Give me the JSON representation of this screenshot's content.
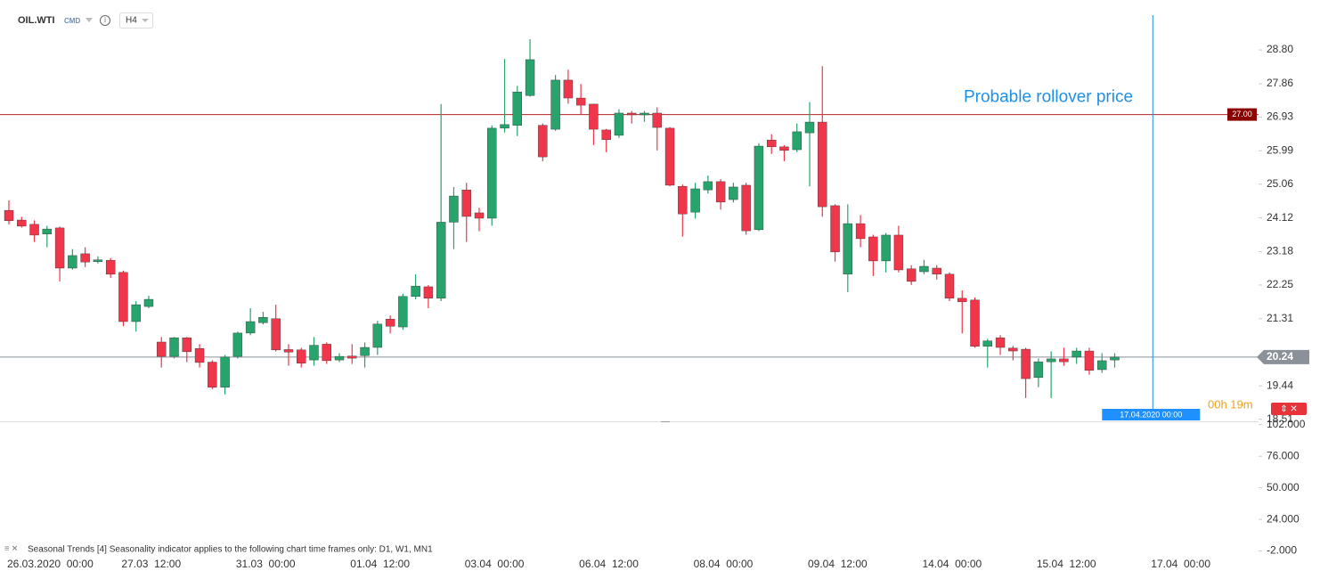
{
  "chart_data": {
    "type": "candlestick",
    "symbol": "OIL.WTI",
    "market": "CMD",
    "timeframe": "H4",
    "annotation": "Probable rollover price",
    "rollover_line": {
      "value": 27,
      "label": "27.00"
    },
    "price_line": 20.24,
    "marker_date": "17.04.2020 00:00",
    "countdown": "00h 19m",
    "indicator_note": "Seasonal  Trends  [4]  Seasonality  indicator  applies  to  the  following  chart  time  frames  only:  D1,  W1,  MN1",
    "x_labels": [
      "26.03.2020  00:00",
      "27.03  12:00",
      "31.03  00:00",
      "01.04  12:00",
      "03.04  00:00",
      "06.04  12:00",
      "08.04  00:00",
      "09.04  12:00",
      "14.04  00:00",
      "15.04  12:00",
      "17.04  00:00"
    ],
    "up_color": "#26a46c",
    "down_color": "#f0364a",
    "open": [
      24.33,
      24.06,
      23.94,
      23.67,
      23.84,
      22.72,
      23.12,
      22.9,
      22.94,
      22.6,
      21.23,
      21.65,
      20.66,
      20.26,
      20.78,
      20.48,
      20.1,
      19.4,
      20.26,
      20.91,
      21.2,
      21.31,
      20.45,
      20.44,
      20.16,
      20.6,
      20.16,
      20.27,
      20.28,
      20.51,
      21.3,
      21.08,
      21.93,
      22.2,
      21.88,
      24.0,
      24.9,
      24.26,
      24.11,
      26.62,
      26.7,
      27.53,
      26.7,
      26.59,
      27.96,
      27.46,
      27.29,
      26.57,
      26.42,
      27.04,
      26.99,
      27.04,
      26.62,
      25.0,
      24.28,
      24.9,
      25.13,
      24.63,
      25.03,
      23.79,
      26.29,
      26.1,
      26.02,
      26.49,
      26.79,
      24.46,
      22.55,
      23.96,
      23.59,
      22.92,
      23.64,
      22.7,
      22.62,
      22.72,
      22.55,
      21.88,
      21.83,
      20.54,
      20.78,
      20.49,
      20.46,
      19.67,
      20.11,
      20.19,
      20.24,
      20.41,
      19.89,
      20.16
    ],
    "high": [
      24.61,
      24.15,
      24.05,
      23.9,
      23.88,
      23.25,
      23.3,
      23.05,
      23.0,
      22.65,
      21.8,
      21.95,
      20.8,
      20.8,
      20.8,
      20.6,
      20.15,
      20.3,
      20.95,
      21.6,
      21.5,
      21.7,
      20.6,
      20.5,
      20.8,
      20.65,
      20.35,
      20.6,
      20.65,
      21.25,
      21.4,
      22.0,
      22.55,
      22.25,
      27.29,
      24.98,
      25.1,
      24.4,
      26.7,
      28.55,
      27.8,
      29.1,
      26.75,
      28.1,
      28.25,
      27.85,
      27.3,
      26.6,
      27.15,
      27.1,
      27.1,
      27.2,
      26.65,
      25.05,
      25.1,
      25.3,
      25.2,
      25.1,
      25.1,
      26.2,
      26.45,
      26.15,
      26.75,
      27.35,
      28.35,
      24.5,
      24.5,
      24.2,
      23.65,
      23.7,
      23.9,
      22.8,
      22.95,
      22.8,
      22.6,
      22.1,
      21.9,
      20.75,
      20.85,
      20.55,
      20.5,
      20.2,
      20.4,
      20.5,
      20.5,
      20.5,
      20.35,
      20.35
    ],
    "low": [
      23.94,
      23.85,
      23.45,
      23.3,
      22.35,
      22.68,
      22.75,
      22.85,
      22.45,
      21.1,
      20.95,
      21.6,
      19.95,
      20.2,
      20.1,
      19.95,
      19.35,
      19.2,
      20.2,
      20.85,
      21.15,
      20.4,
      20.0,
      19.95,
      20.0,
      20.05,
      20.1,
      20.05,
      19.95,
      20.3,
      20.9,
      21.0,
      21.85,
      21.6,
      21.8,
      23.25,
      23.45,
      23.75,
      23.9,
      26.5,
      26.4,
      27.5,
      25.7,
      26.55,
      27.3,
      27.0,
      26.15,
      25.95,
      26.35,
      26.75,
      26.8,
      26.0,
      25.0,
      23.6,
      24.1,
      24.8,
      24.35,
      24.55,
      23.65,
      23.75,
      25.9,
      25.7,
      25.95,
      25.0,
      24.15,
      22.9,
      22.05,
      23.3,
      22.5,
      22.6,
      22.6,
      22.25,
      22.55,
      22.4,
      21.8,
      20.9,
      20.5,
      19.95,
      20.3,
      20.15,
      19.1,
      19.4,
      19.1,
      20.0,
      20.05,
      19.75,
      19.8,
      19.95
    ],
    "close": [
      24.04,
      23.89,
      23.64,
      23.81,
      22.72,
      23.07,
      22.89,
      22.95,
      22.55,
      21.23,
      21.7,
      21.85,
      20.26,
      20.78,
      20.39,
      20.09,
      19.4,
      20.24,
      20.91,
      21.23,
      21.35,
      20.44,
      20.38,
      20.07,
      20.57,
      20.14,
      20.26,
      20.21,
      20.51,
      21.16,
      21.1,
      21.93,
      22.22,
      21.88,
      24.0,
      24.73,
      24.16,
      24.11,
      26.62,
      26.72,
      27.63,
      28.53,
      25.82,
      27.96,
      27.46,
      27.26,
      26.59,
      26.3,
      27.04,
      26.99,
      27.04,
      26.64,
      25.03,
      24.23,
      24.93,
      25.13,
      24.56,
      24.98,
      23.76,
      26.12,
      26.1,
      26.0,
      26.52,
      26.79,
      24.43,
      23.17,
      23.96,
      23.54,
      22.92,
      23.64,
      22.67,
      22.35,
      22.77,
      22.55,
      21.88,
      21.78,
      20.54,
      20.69,
      20.51,
      20.41,
      19.64,
      20.11,
      20.19,
      20.11,
      20.41,
      19.87,
      20.14,
      20.24
    ],
    "ylim": [
      18.45,
      29.77
    ],
    "yticks": [
      {
        "value": 28.8,
        "label": "28.80"
      },
      27.86,
      26.93,
      25.99,
      25.06,
      24.12,
      23.18,
      22.25,
      21.31,
      19.44,
      18.51
    ],
    "y2lim": [
      -6,
      104
    ],
    "y2ticks": [
      {
        "value": 102,
        "label": "102.000"
      },
      {
        "value": 76,
        "label": "76.000"
      },
      {
        "value": 50,
        "label": "50.000"
      },
      {
        "value": 24,
        "label": "24.000"
      },
      {
        "value": -2,
        "label": "-2.000"
      }
    ]
  }
}
